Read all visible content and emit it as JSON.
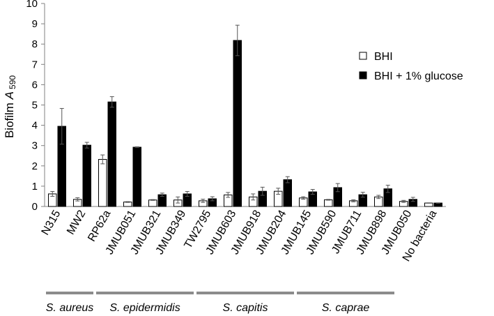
{
  "chart_data": {
    "type": "bar",
    "ylabel": {
      "prefix": "Biofilm ",
      "italic": "A",
      "subscript": "590"
    },
    "ylim": [
      0,
      10
    ],
    "yticks": [
      0,
      1,
      2,
      3,
      4,
      5,
      6,
      7,
      8,
      9,
      10
    ],
    "grid": false,
    "legend_position": "top-right",
    "categories": [
      "N315",
      "MW2",
      "RP62a",
      "JMUB051",
      "JMUB321",
      "JMUB349",
      "TW2795",
      "JMUB603",
      "JMUB918",
      "JMUB204",
      "JMUB145",
      "JMUB590",
      "JMUB711",
      "JMUB898",
      "JMUB050",
      "No bacteria"
    ],
    "series": [
      {
        "name": "BHI",
        "color": "#ffffff",
        "values": [
          0.62,
          0.35,
          2.32,
          0.22,
          0.32,
          0.32,
          0.28,
          0.57,
          0.47,
          0.75,
          0.42,
          0.33,
          0.28,
          0.47,
          0.25,
          0.17
        ],
        "errors": [
          0.12,
          0.08,
          0.22,
          0.02,
          0.02,
          0.15,
          0.08,
          0.12,
          0.15,
          0.15,
          0.06,
          0.02,
          0.05,
          0.08,
          0.05,
          0.01
        ]
      },
      {
        "name": "BHI + 1% glucose",
        "color": "#000000",
        "values": [
          3.95,
          3.02,
          5.15,
          2.92,
          0.58,
          0.62,
          0.38,
          8.18,
          0.75,
          1.32,
          0.72,
          0.93,
          0.58,
          0.87,
          0.35,
          0.17
        ],
        "errors": [
          0.88,
          0.14,
          0.26,
          0.02,
          0.08,
          0.12,
          0.1,
          0.75,
          0.2,
          0.15,
          0.12,
          0.2,
          0.12,
          0.18,
          0.1,
          0.01
        ]
      }
    ],
    "groups": [
      {
        "label": "S. aureus",
        "start": 0,
        "end": 1
      },
      {
        "label": "S. epidermidis",
        "start": 2,
        "end": 5
      },
      {
        "label": "S. capitis",
        "start": 6,
        "end": 9
      },
      {
        "label": "S. caprae",
        "start": 10,
        "end": 13
      }
    ]
  }
}
